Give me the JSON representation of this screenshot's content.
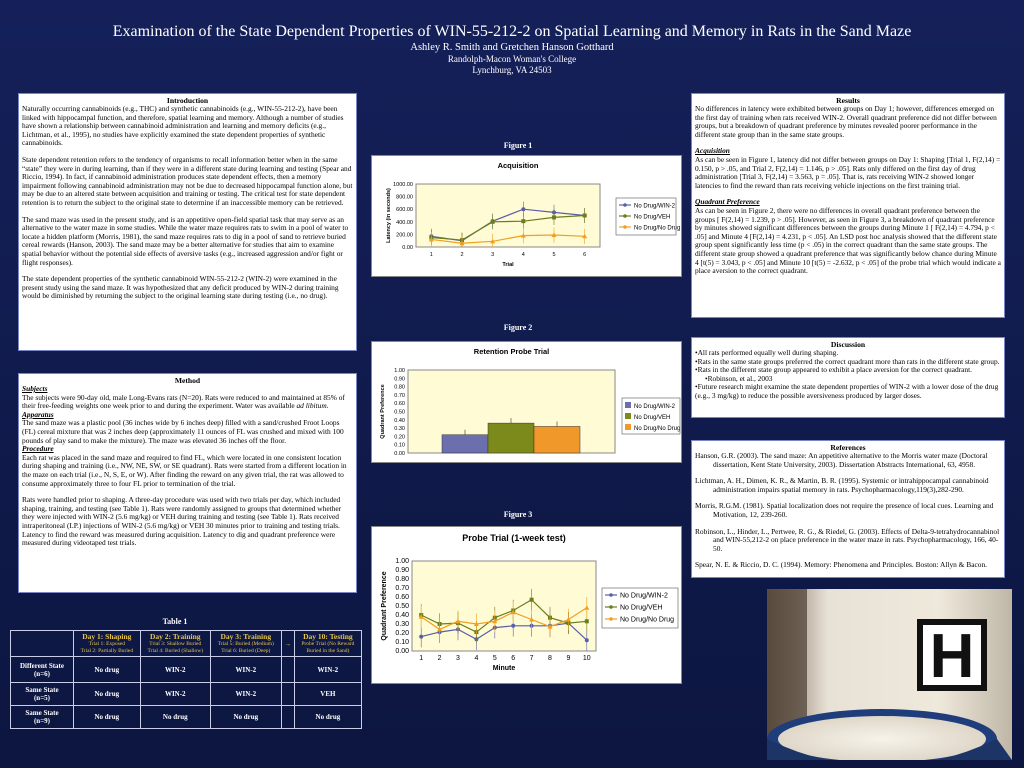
{
  "header": {
    "title": "Examination of the State Dependent Properties of WIN-55-212-2 on Spatial Learning and Memory in Rats in the Sand Maze",
    "authors": "Ashley R. Smith and Gretchen Hanson Gotthard",
    "institution": "Randolph-Macon Woman's College",
    "location": "Lynchburg, VA 24503"
  },
  "introduction": {
    "heading": "Introduction",
    "p1": "Naturally occurring cannabinoids (e.g., THC) and synthetic cannabinoids (e.g., WIN-55-212-2), have been linked with hippocampal function, and therefore, spatial learning and memory.  Although a number of studies have shown a relationship between cannabinoid administration and learning and memory deficits (e.g., Lichtman, et al., 1995), no studies have explicitly examined the state dependent properties of synthetic cannabinoids.",
    "p2": "State dependent retention refers to the tendency of organisms to recall information better when in the same “state” they were in during learning, than if they were in a different state during learning and testing (Spear and Riccio, 1994). In fact, if cannabinoid administration produces state dependent effects, then a memory impairment following cannabinoid administration may not be due to decreased hippocampal function alone, but may be due to an altered state between acquisition and training or testing. The critical test for state dependent retention is to return the subject to the original state to determine if an inaccessible memory can be retrieved.",
    "p3": "The sand maze was used in the present study, and is an appetitive open-field spatial task that may serve as an alternative to the water maze in some studies.  While the water maze requires rats to swim in a pool of water to locate a hidden platform (Morris, 1981), the sand maze requires rats to dig in a pool of sand to retrieve buried cereal rewards (Hanson, 2003).  The  sand maze may be a better alternative for studies that aim to examine spatial behavior without the potential side effects of aversive tasks (e.g., increased aggression and/or fight or flight responses).",
    "p4": "The state dependent properties of the synthetic cannabinoid WIN-55-212-2 (WIN-2) were examined in the present study using the sand maze.  It was hypothesized that any deficit produced by WIN-2 during training would be diminished by returning the subject to the original learning state during testing (i.e., no drug)."
  },
  "method": {
    "heading": "Method",
    "subjects_h": "Subjects",
    "subjects": "The subjects were 90-day old, male Long-Evans rats (N=20).  Rats were reduced to and maintained at 85% of their free-feeding weights one week prior to and during the experiment.  Water was available",
    "subjects_em": "ad libitum.",
    "apparatus_h": "Apparatus",
    "apparatus": "The sand maze was a plastic pool (36 inches wide by 6 inches deep) filled with a sand/crushed Froot Loops (FL) cereal mixture that was 2 inches deep (approximately 11 ounces of FL was crushed and mixed with 100 pounds of play sand to make the mixture).  The maze was elevated 36 inches off the floor.",
    "procedure_h": "Procedure",
    "procedure1": "Each rat was placed in the sand maze and required to find FL, which were located in one consistent location during shaping and training (i.e., NW, NE, SW, or SE quadrant).  Rats were started from a different location in the maze on each trial (i.e., N, S, E, or W).  After finding the reward on any given trial, the rat was allowed to consume approximately three to four FL prior to termination of the trial.",
    "procedure2": "Rats were handled prior to shaping.  A three-day procedure was used with two trials per day, which included shaping, training, and testing (see Table 1). Rats were randomly assigned to groups that determined whether they were injected with WIN-2 (5.6 mg/kg) or VEH during training and testing (see Table 1).  Rats received intraperitoneal (I.P.) injections of WIN-2 (5.6 mg/kg) or VEH 30 minutes prior to training and testing trials. Latency to find the reward was measured during acquisition. Latency to dig and quadrant preference were measured during videotaped test trials."
  },
  "table1": {
    "label": "Table 1",
    "columns": [
      {
        "title": "Day 1: Shaping",
        "sub1": "Trial 1: Exposed",
        "sub2": "Trial 2: Partially Buried"
      },
      {
        "title": "Day 2: Training",
        "sub1": "Trial 3: Shallow Buried",
        "sub2": "Trial 4: Buried (Shallow)"
      },
      {
        "title": "Day 3: Training",
        "sub1": "Trial 5: Buried (Medium)",
        "sub2": "Trial 6: Buried (Deep)"
      },
      {
        "title": "Day 10: Testing",
        "sub1": "Probe Trial (No Reward",
        "sub2": "Buried in the Sand)"
      }
    ],
    "arrow": "→",
    "rows": [
      {
        "group": "Different State",
        "n": "(n=6)",
        "cells": [
          "No drug",
          "WIN-2",
          "WIN-2",
          "WIN-2"
        ]
      },
      {
        "group": "Same State",
        "n": "(n=5)",
        "cells": [
          "No drug",
          "WIN-2",
          "WIN-2",
          "VEH"
        ]
      },
      {
        "group": "Same State",
        "n": "(n=9)",
        "cells": [
          "No drug",
          "No drug",
          "No drug",
          "No drug"
        ]
      }
    ]
  },
  "figures": {
    "fig1_label": "Figure 1",
    "fig2_label": "Figure 2",
    "fig3_label": "Figure 3"
  },
  "chart_data": [
    {
      "type": "line",
      "title": "Acquisition",
      "xlabel": "Trial",
      "ylabel": "Latency (in seconds)",
      "x": [
        1,
        2,
        3,
        4,
        5,
        6
      ],
      "ylim": [
        0,
        1000
      ],
      "yticks": [
        "1000.00",
        "800.00",
        "600.00",
        "400.00",
        "200.00",
        "0.00"
      ],
      "series": [
        {
          "name": "No Drug/WIN-2",
          "color": "#5a5fa8",
          "values": [
            170,
            100,
            410,
            600,
            550,
            500
          ]
        },
        {
          "name": "No Drug/VEH",
          "color": "#6b7d1c",
          "values": [
            150,
            110,
            400,
            410,
            470,
            500
          ]
        },
        {
          "name": "No Drug/No Drug",
          "color": "#f0a020",
          "values": [
            120,
            60,
            90,
            180,
            190,
            170
          ]
        }
      ]
    },
    {
      "type": "bar",
      "title": "Retention Probe Trial",
      "ylabel": "Quadrant Preference",
      "ylim": [
        0,
        1
      ],
      "yticks": [
        "1.00",
        "0.90",
        "0.80",
        "0.70",
        "0.60",
        "0.50",
        "0.40",
        "0.30",
        "0.20",
        "0.10",
        "0.00"
      ],
      "series": [
        {
          "name": "No Drug/WIN-2",
          "color": "#6b6fae",
          "values": [
            0.22
          ]
        },
        {
          "name": "No Drug/VEH",
          "color": "#7c8a1c",
          "values": [
            0.36
          ]
        },
        {
          "name": "No Drug/No Drug",
          "color": "#f0982a",
          "values": [
            0.32
          ]
        }
      ]
    },
    {
      "type": "line",
      "title": "Probe Trial (1-week test)",
      "xlabel": "Minute",
      "ylabel": "Quadrant Preference",
      "x": [
        1,
        2,
        3,
        4,
        5,
        6,
        7,
        8,
        9,
        10
      ],
      "ylim": [
        0,
        1
      ],
      "yticks": [
        "1.00",
        "0.90",
        "0.80",
        "0.70",
        "0.60",
        "0.50",
        "0.40",
        "0.30",
        "0.20",
        "0.10",
        "0.00"
      ],
      "series": [
        {
          "name": "No Drug/WIN-2",
          "color": "#5a5fa8",
          "values": [
            0.16,
            0.21,
            0.24,
            0.13,
            0.26,
            0.28,
            0.28,
            0.28,
            0.31,
            0.12
          ]
        },
        {
          "name": "No Drug/VEH",
          "color": "#6b7d1c",
          "values": [
            0.4,
            0.3,
            0.31,
            0.21,
            0.37,
            0.45,
            0.57,
            0.37,
            0.31,
            0.33
          ]
        },
        {
          "name": "No Drug/No Drug",
          "color": "#f0a020",
          "values": [
            0.38,
            0.24,
            0.33,
            0.3,
            0.33,
            0.43,
            0.35,
            0.27,
            0.35,
            0.48
          ]
        }
      ]
    }
  ],
  "results": {
    "heading": "Results",
    "p1": "No differences in latency were exhibited between groups on Day 1; however, differences emerged on the first day of training when rats received WIN-2.  Overall quadrant preference did not differ between groups, but a breakdown of quadrant preference by minutes revealed poorer performance in the different state group than in the same state groups.",
    "acq_h": "Acquisition",
    "acq": "As can be seen in Figure 1, latency did not differ between groups on Day 1: Shaping [Trial 1, F(2,14) = 0.150, p > .05, and Trial 2, F(2,14) = 1.146, p > .05].  Rats only differed on the first day of drug administration [Trial 3, F(2,14) = 3.563, p = .05]. That is, rats receiving WIN-2 showed longer latencies to find the reward than rats receiving vehicle injections on the first training trial.",
    "qp_h": "Quadrant Preference",
    "qp": "As can be seen in Figure 2, there were no differences in overall quadrant preference between the groups [ F(2,14) = 1.239, p > .05].  However, as seen in Figure 3, a breakdown of quadrant preference by minutes showed significant differences between the groups during Minute 1 [ F(2,14) = 4.794, p < .05] and Minute 4 [F(2,14) = 4.231, p < .05].  An LSD post hoc analysis showed that the different state group spent significantly less time (p < .05) in the correct quadrant than the same state groups.  The different state group showed a quadrant preference that was significantly below chance during Minute 4 [t(5) = 3.043, p < .05] and Minute 10 [t(5) = -2.632, p < .05] of the probe trial which would indicate a place aversion to the correct quadrant."
  },
  "discussion": {
    "heading": "Discussion",
    "items": [
      "•All rats performed equally well during shaping.",
      "•Rats in the same state groups preferred the correct quadrant more than rats in the different state group.",
      "•Rats in the different state group appeared to exhibit a place aversion for the correct quadrant.",
      "•Robinson, et al., 2003",
      "•Future research might examine the state dependent properties of WIN-2 with a lower dose of the drug (e.g., 3 mg/kg) to reduce the possible aversiveness produced by larger doses."
    ]
  },
  "references": {
    "heading": "References",
    "items": [
      "Hanson, G.R. (2003).  The sand maze: An appetitive alternative to the Morris water maze (Doctoral dissertation, Kent State University, 2003). Dissertation Abstracts International, 63, 4958.",
      "Lichtman, A. H., Dimen, K. R., & Martin, B. R. (1995). Systemic or intrahippocampal cannabinoid administration impairs spatial memory in rats. Psychopharmacology,119(3),282-290.",
      "Morris, R.G.M. (1981). Spatial localization does not require the presence of local cues. Learning and Motivation, 12, 239-260.",
      "Robinson, L., Hinder, L., Pertwee, R. G., & Riedel, G. (2003).  Effects of Delta-9-tetrahydrocannabinol and WIN-55,212-2 on place preference in the water maze in rats. Psychopharmacology, 166, 40-50.",
      "Spear, N. E. & Riccio, D. C. (1994).  Memory: Phenomena and Principles. Boston: Allyn & Bacon."
    ]
  },
  "photo": {
    "sign_letter": "H"
  }
}
